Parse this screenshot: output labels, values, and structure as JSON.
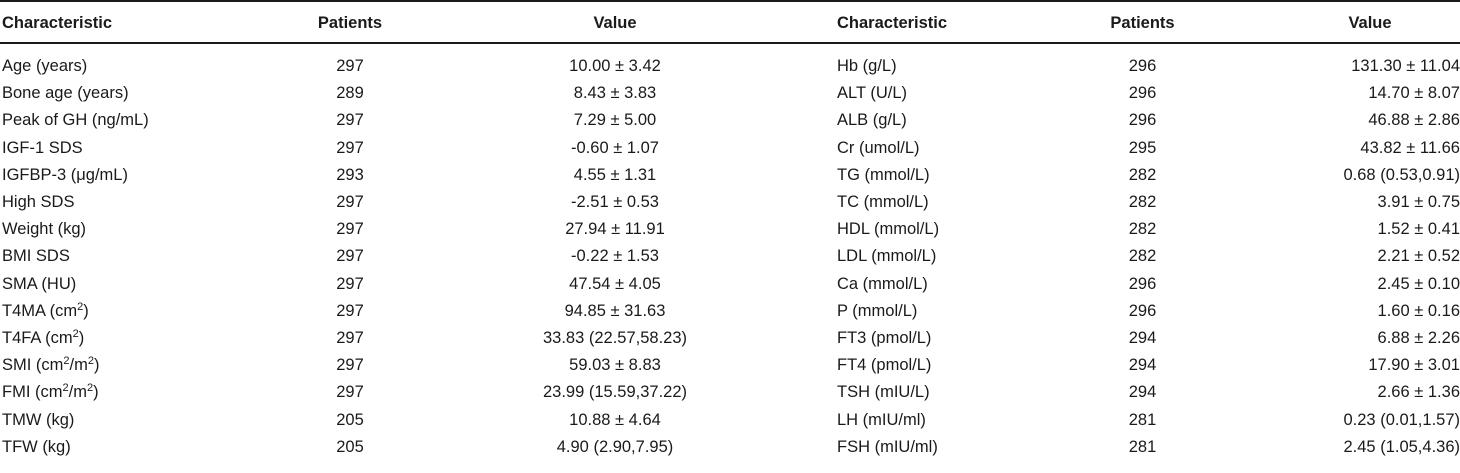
{
  "headers": [
    "Characteristic",
    "Patients",
    "Value",
    "Characteristic",
    "Patients",
    "Value"
  ],
  "rows": [
    {
      "l_char": "Age (years)",
      "l_sup": "",
      "l_tail": "",
      "l_sup2": "",
      "l_tail2": "",
      "l_pat": "297",
      "l_val": "10.00 ± 3.42",
      "r_char": "Hb (g/L)",
      "r_pat": "296",
      "r_val": "131.30 ± 11.04"
    },
    {
      "l_char": "Bone age (years)",
      "l_sup": "",
      "l_tail": "",
      "l_sup2": "",
      "l_tail2": "",
      "l_pat": "289",
      "l_val": "8.43 ± 3.83",
      "r_char": "ALT (U/L)",
      "r_pat": "296",
      "r_val": "14.70 ± 8.07"
    },
    {
      "l_char": "Peak of GH (ng/mL)",
      "l_sup": "",
      "l_tail": "",
      "l_sup2": "",
      "l_tail2": "",
      "l_pat": "297",
      "l_val": "7.29 ± 5.00",
      "r_char": "ALB (g/L)",
      "r_pat": "296",
      "r_val": "46.88 ± 2.86"
    },
    {
      "l_char": "IGF-1 SDS",
      "l_sup": "",
      "l_tail": "",
      "l_sup2": "",
      "l_tail2": "",
      "l_pat": "297",
      "l_val": "-0.60 ± 1.07",
      "r_char": "Cr (umol/L)",
      "r_pat": "295",
      "r_val": "43.82 ± 11.66"
    },
    {
      "l_char": "IGFBP-3 (μg/mL)",
      "l_sup": "",
      "l_tail": "",
      "l_sup2": "",
      "l_tail2": "",
      "l_pat": "293",
      "l_val": "4.55 ± 1.31",
      "r_char": "TG (mmol/L)",
      "r_pat": "282",
      "r_val": "0.68 (0.53,0.91)"
    },
    {
      "l_char": "High SDS",
      "l_sup": "",
      "l_tail": "",
      "l_sup2": "",
      "l_tail2": "",
      "l_pat": "297",
      "l_val": "-2.51 ± 0.53",
      "r_char": "TC (mmol/L)",
      "r_pat": "282",
      "r_val": "3.91 ± 0.75"
    },
    {
      "l_char": "Weight (kg)",
      "l_sup": "",
      "l_tail": "",
      "l_sup2": "",
      "l_tail2": "",
      "l_pat": "297",
      "l_val": "27.94 ± 11.91",
      "r_char": "HDL (mmol/L)",
      "r_pat": "282",
      "r_val": "1.52 ± 0.41"
    },
    {
      "l_char": "BMI SDS",
      "l_sup": "",
      "l_tail": "",
      "l_sup2": "",
      "l_tail2": "",
      "l_pat": "297",
      "l_val": "-0.22 ± 1.53",
      "r_char": "LDL (mmol/L)",
      "r_pat": "282",
      "r_val": "2.21 ± 0.52"
    },
    {
      "l_char": "SMA (HU)",
      "l_sup": "",
      "l_tail": "",
      "l_sup2": "",
      "l_tail2": "",
      "l_pat": "297",
      "l_val": "47.54 ± 4.05",
      "r_char": "Ca (mmol/L)",
      "r_pat": "296",
      "r_val": "2.45 ± 0.10"
    },
    {
      "l_char": "T4MA (cm",
      "l_sup": "2",
      "l_tail": ")",
      "l_sup2": "",
      "l_tail2": "",
      "l_pat": "297",
      "l_val": "94.85 ± 31.63",
      "r_char": "P (mmol/L)",
      "r_pat": "296",
      "r_val": "1.60 ± 0.16"
    },
    {
      "l_char": "T4FA (cm",
      "l_sup": "2",
      "l_tail": ")",
      "l_sup2": "",
      "l_tail2": "",
      "l_pat": "297",
      "l_val": "33.83 (22.57,58.23)",
      "r_char": "FT3 (pmol/L)",
      "r_pat": "294",
      "r_val": "6.88 ± 2.26"
    },
    {
      "l_char": "SMI (cm",
      "l_sup": "2",
      "l_tail": "/m",
      "l_sup2": "2",
      "l_tail2": ")",
      "l_pat": "297",
      "l_val": "59.03 ± 8.83",
      "r_char": "FT4 (pmol/L)",
      "r_pat": "294",
      "r_val": "17.90 ± 3.01"
    },
    {
      "l_char": "FMI (cm",
      "l_sup": "2",
      "l_tail": "/m",
      "l_sup2": "2",
      "l_tail2": ")",
      "l_pat": "297",
      "l_val": "23.99 (15.59,37.22)",
      "r_char": "TSH (mIU/L)",
      "r_pat": "294",
      "r_val": "2.66 ± 1.36"
    },
    {
      "l_char": "TMW (kg)",
      "l_sup": "",
      "l_tail": "",
      "l_sup2": "",
      "l_tail2": "",
      "l_pat": "205",
      "l_val": "10.88 ± 4.64",
      "r_char": "LH (mIU/ml)",
      "r_pat": "281",
      "r_val": "0.23 (0.01,1.57)"
    },
    {
      "l_char": "TFW (kg)",
      "l_sup": "",
      "l_tail": "",
      "l_sup2": "",
      "l_tail2": "",
      "l_pat": "205",
      "l_val": "4.90 (2.90,7.95)",
      "r_char": "FSH (mIU/ml)",
      "r_pat": "281",
      "r_val": "2.45 (1.05,4.36)"
    }
  ]
}
